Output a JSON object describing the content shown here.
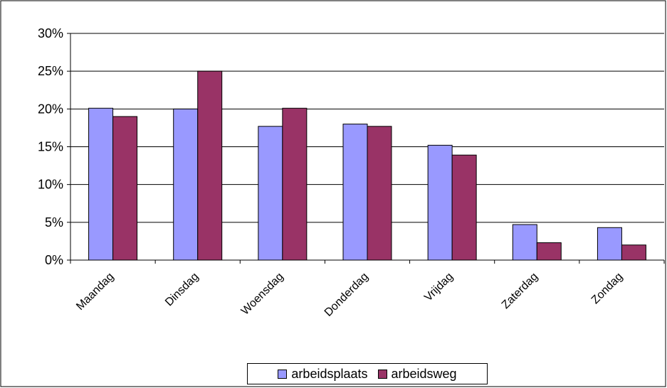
{
  "chart_data": {
    "type": "bar",
    "categories": [
      "Maandag",
      "Dinsdag",
      "Woensdag",
      "Donderdag",
      "Vrijdag",
      "Zaterdag",
      "Zondag"
    ],
    "series": [
      {
        "name": "arbeidsplaats",
        "color": "#9999ff",
        "values": [
          20.1,
          20.0,
          17.7,
          18.0,
          15.2,
          4.7,
          4.3
        ]
      },
      {
        "name": "arbeidsweg",
        "color": "#993366",
        "values": [
          19.0,
          25.0,
          20.1,
          17.7,
          13.9,
          2.3,
          2.0
        ]
      }
    ],
    "y_ticks": [
      "0%",
      "5%",
      "10%",
      "15%",
      "20%",
      "25%",
      "30%"
    ],
    "ylim": [
      0,
      30
    ],
    "title": "",
    "xlabel": "",
    "ylabel": "",
    "grid": "horizontal",
    "legend_position": "bottom"
  }
}
